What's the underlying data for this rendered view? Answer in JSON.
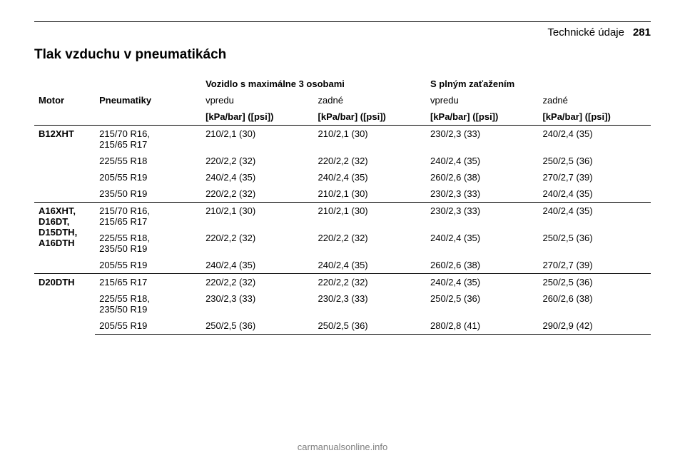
{
  "header": {
    "chapter": "Technické údaje",
    "page": "281"
  },
  "section": {
    "title": "Tlak vzduchu v pneumatikách"
  },
  "table": {
    "groupHeaders": {
      "left": "Vozidlo s maximálne 3 osobami",
      "right": "S plným zaťažením"
    },
    "colHeaders": {
      "motor": "Motor",
      "tyres": "Pneumatiky",
      "front": "vpredu",
      "rear": "zadné",
      "unit": "[kPa/bar] ([psi])"
    },
    "groups": [
      {
        "motor": "B12XHT",
        "rows": [
          {
            "tyre": "215/70 R16,\n215/65 R17",
            "v": [
              "210/2,1 (30)",
              "210/2,1 (30)",
              "230/2,3 (33)",
              "240/2,4 (35)"
            ]
          },
          {
            "tyre": "225/55 R18",
            "v": [
              "220/2,2 (32)",
              "220/2,2 (32)",
              "240/2,4 (35)",
              "250/2,5 (36)"
            ]
          },
          {
            "tyre": "205/55 R19",
            "v": [
              "240/2,4 (35)",
              "240/2,4 (35)",
              "260/2,6 (38)",
              "270/2,7 (39)"
            ]
          },
          {
            "tyre": "235/50 R19",
            "v": [
              "220/2,2 (32)",
              "210/2,1 (30)",
              "230/2,3 (33)",
              "240/2,4 (35)"
            ]
          }
        ]
      },
      {
        "motor": "A16XHT,\nD16DT,\nD15DTH,\nA16DTH",
        "rows": [
          {
            "tyre": "215/70 R16,\n215/65 R17",
            "v": [
              "210/2,1 (30)",
              "210/2,1 (30)",
              "230/2,3 (33)",
              "240/2,4 (35)"
            ]
          },
          {
            "tyre": "225/55 R18,\n235/50 R19",
            "v": [
              "220/2,2 (32)",
              "220/2,2 (32)",
              "240/2,4 (35)",
              "250/2,5 (36)"
            ]
          },
          {
            "tyre": "205/55 R19",
            "v": [
              "240/2,4 (35)",
              "240/2,4 (35)",
              "260/2,6 (38)",
              "270/2,7 (39)"
            ]
          }
        ]
      },
      {
        "motor": "D20DTH",
        "rows": [
          {
            "tyre": "215/65 R17",
            "v": [
              "220/2,2 (32)",
              "220/2,2 (32)",
              "240/2,4 (35)",
              "250/2,5 (36)"
            ]
          },
          {
            "tyre": "225/55 R18,\n235/50 R19",
            "v": [
              "230/2,3 (33)",
              "230/2,3 (33)",
              "250/2,5 (36)",
              "260/2,6 (38)"
            ]
          },
          {
            "tyre": "205/55 R19",
            "v": [
              "250/2,5 (36)",
              "250/2,5 (36)",
              "280/2,8 (41)",
              "290/2,9 (42)"
            ]
          }
        ]
      }
    ]
  },
  "footer": {
    "text": "carmanualsonline.info"
  }
}
